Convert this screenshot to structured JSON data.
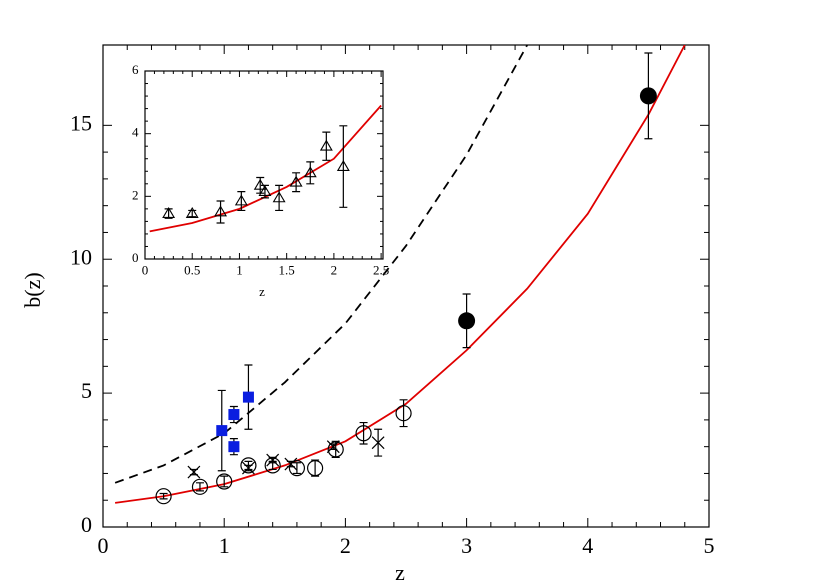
{
  "chart_data": [
    {
      "type": "scatter",
      "x_label": "z",
      "y_label": "b(z)",
      "xlim": [
        0,
        5
      ],
      "ylim": [
        0,
        18
      ],
      "xticks": [
        0,
        1,
        2,
        3,
        4,
        5
      ],
      "yticks": [
        0,
        5,
        10,
        15
      ],
      "series": [
        {
          "marker": "line",
          "color": "#e00000",
          "x": [
            0.1,
            0.5,
            1,
            1.5,
            2,
            2.5,
            3,
            3.5,
            4,
            4.5,
            4.8
          ],
          "values": [
            0.9,
            1.15,
            1.6,
            2.3,
            3.2,
            4.6,
            6.6,
            8.9,
            11.7,
            15.4,
            18
          ]
        },
        {
          "marker": "dashed-line",
          "color": "#000000",
          "x": [
            0.1,
            0.5,
            1,
            1.5,
            2,
            2.5,
            3,
            3.5
          ],
          "values": [
            1.65,
            2.3,
            3.5,
            5.4,
            7.6,
            10.5,
            13.9,
            18
          ]
        },
        {
          "marker": "open-circle",
          "color": "#000000",
          "x": [
            0.5,
            0.8,
            1.0,
            1.2,
            1.4,
            1.6,
            1.75,
            1.92,
            2.15,
            2.48
          ],
          "values": [
            1.15,
            1.5,
            1.7,
            2.3,
            2.3,
            2.2,
            2.2,
            2.9,
            3.5,
            4.25
          ],
          "errors": [
            0.1,
            0.15,
            0.2,
            0.15,
            0.15,
            0.2,
            0.3,
            0.3,
            0.4,
            0.5
          ]
        },
        {
          "marker": "cross",
          "color": "#000000",
          "x": [
            0.75,
            1.2,
            1.4,
            1.55,
            1.9,
            2.27
          ],
          "values": [
            2.05,
            2.2,
            2.5,
            2.35,
            3.0,
            3.15
          ],
          "errors": [
            0.1,
            0.1,
            0.1,
            0.1,
            0.1,
            0.5
          ]
        },
        {
          "marker": "square",
          "color": "#0a1ee0",
          "x": [
            0.98,
            1.08,
            1.08,
            1.2
          ],
          "values": [
            3.6,
            4.2,
            3.0,
            4.85
          ],
          "errors": [
            1.5,
            0.3,
            0.3,
            1.2
          ]
        },
        {
          "marker": "filled-circle",
          "color": "#000000",
          "x": [
            3.0,
            4.5
          ],
          "values": [
            7.7,
            16.1
          ],
          "errors": [
            1.0,
            1.6
          ]
        }
      ]
    },
    {
      "type": "scatter",
      "x_label": "z",
      "xlim": [
        0,
        2.52
      ],
      "ylim": [
        0,
        6
      ],
      "xticks": [
        0,
        0.5,
        1,
        1.5,
        2,
        2.5
      ],
      "yticks": [
        0,
        2,
        4,
        6
      ],
      "series": [
        {
          "marker": "line",
          "color": "#e00000",
          "x": [
            0.05,
            0.5,
            1,
            1.5,
            2,
            2.5
          ],
          "values": [
            0.88,
            1.15,
            1.6,
            2.3,
            3.2,
            4.9
          ]
        },
        {
          "marker": "triangle",
          "color": "#000000",
          "x": [
            0.25,
            0.5,
            0.8,
            1.02,
            1.22,
            1.27,
            1.42,
            1.6,
            1.75,
            1.92,
            2.1
          ],
          "values": [
            1.45,
            1.45,
            1.5,
            1.85,
            2.35,
            2.15,
            1.95,
            2.45,
            2.75,
            3.6,
            2.95
          ],
          "errors": [
            0.15,
            0.1,
            0.35,
            0.3,
            0.25,
            0.2,
            0.4,
            0.3,
            0.35,
            0.45,
            1.3
          ]
        }
      ]
    }
  ]
}
